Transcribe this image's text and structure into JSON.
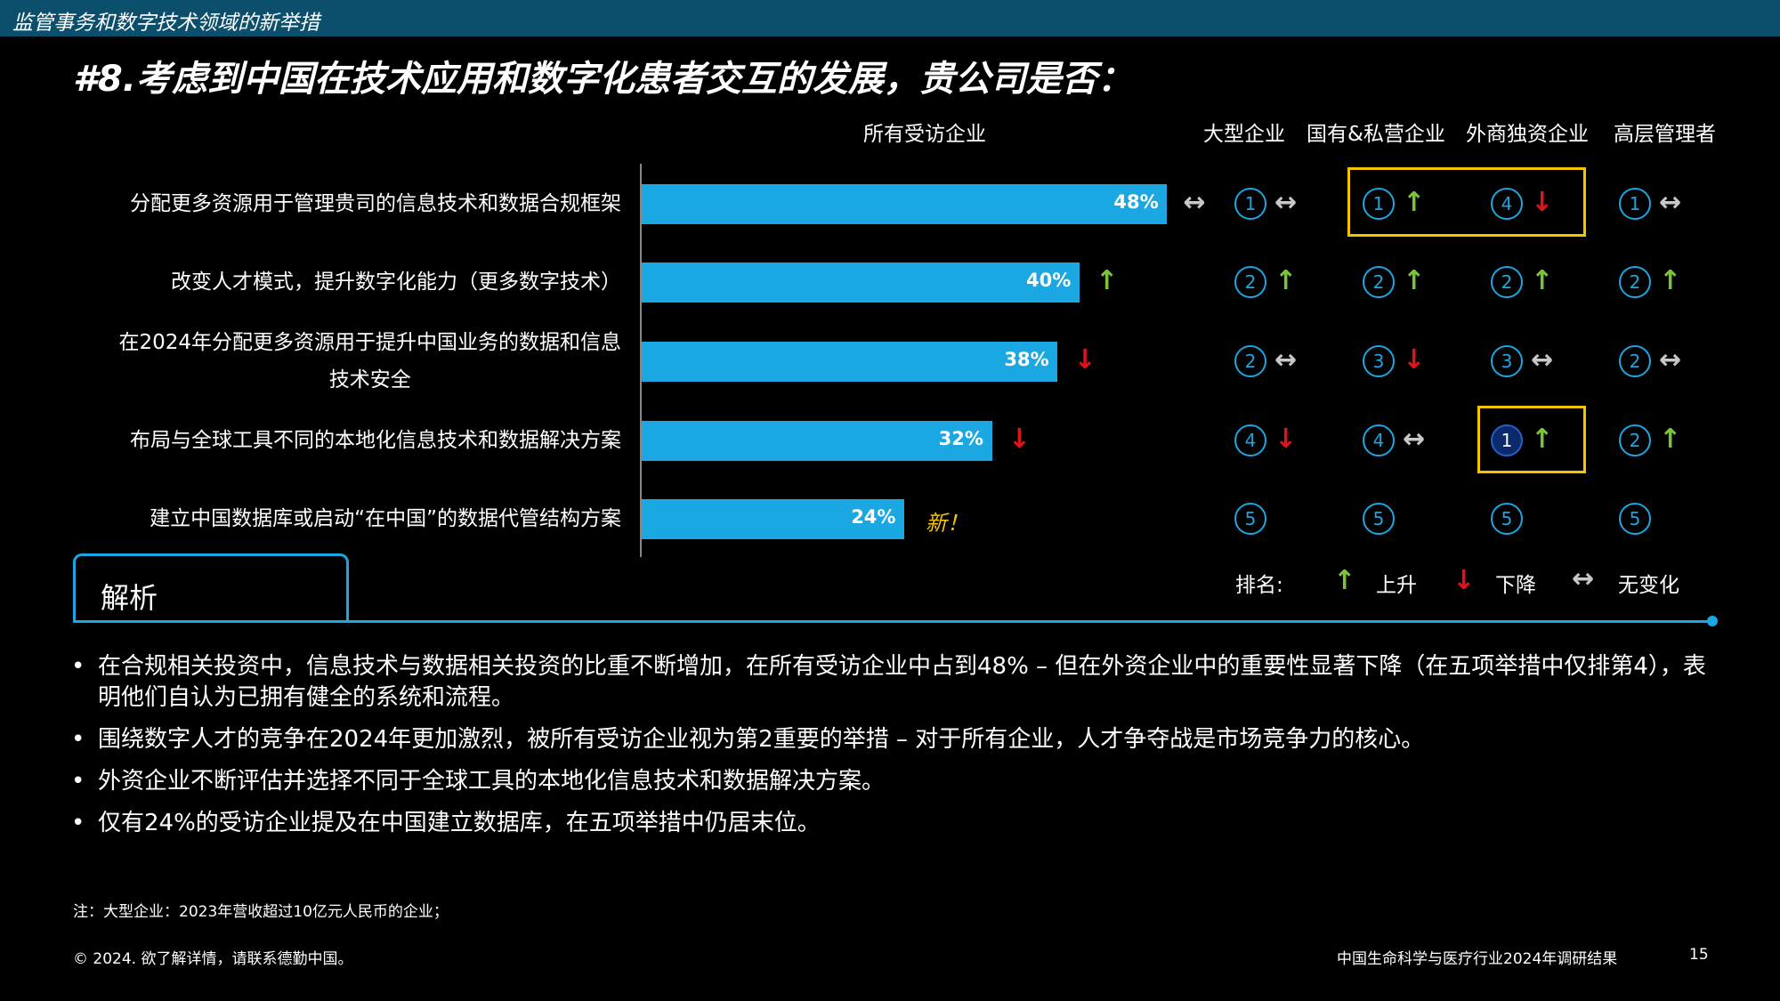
{
  "header": {
    "section": "监管事务和数字技术领域的新举措"
  },
  "title": "#8.考虑到中国在技术应用和数字化患者交互的发展，贵公司是否：",
  "column_headers": [
    "所有受访企业",
    "大型企业",
    "国有&私营企业",
    "外商独资企业",
    "高层管理者"
  ],
  "chart_data": {
    "type": "bar",
    "categories": [
      "分配更多资源用于管理贵司的信息技术和数据合规框架",
      "改变人才模式，提升数字化能力（更多数字技术）",
      "在2024年分配更多资源用于提升中国业务的数据和信息技术安全",
      "布局与全球工具不同的本地化信息技术和数据解决方案",
      "建立中国数据库或启动“在中国”的数据代管结构方案"
    ],
    "label_lines": [
      [
        "分配更多资源用于管理贵司的信息技术和数据合规框架"
      ],
      [
        "改变人才模式，提升数字化能力（更多数字技术）"
      ],
      [
        "在2024年分配更多资源用于提升中国业务的数据和信息",
        "技术安全"
      ],
      [
        "布局与全球工具不同的本地化信息技术和数据解决方案"
      ],
      [
        "建立中国数据库或启动“在中国”的数据代管结构方案"
      ]
    ],
    "values": [
      48,
      40,
      38,
      32,
      24
    ],
    "value_labels": [
      "48%",
      "40%",
      "38%",
      "32%",
      "24%"
    ],
    "trends": [
      "flat",
      "up",
      "down",
      "down",
      "new"
    ],
    "new_label": "新！",
    "segments": [
      "大型企业",
      "国有&私营企业",
      "外商独资企业",
      "高层管理者"
    ],
    "rankings": [
      [
        {
          "rank": "①",
          "trend": "flat"
        },
        {
          "rank": "①",
          "trend": "up"
        },
        {
          "rank": "④",
          "trend": "down"
        },
        {
          "rank": "①",
          "trend": "flat"
        }
      ],
      [
        {
          "rank": "②",
          "trend": "up"
        },
        {
          "rank": "②",
          "trend": "up"
        },
        {
          "rank": "②",
          "trend": "up"
        },
        {
          "rank": "②",
          "trend": "up"
        }
      ],
      [
        {
          "rank": "②",
          "trend": "flat"
        },
        {
          "rank": "③",
          "trend": "down"
        },
        {
          "rank": "③",
          "trend": "flat"
        },
        {
          "rank": "②",
          "trend": "flat"
        }
      ],
      [
        {
          "rank": "④",
          "trend": "down"
        },
        {
          "rank": "④",
          "trend": "flat"
        },
        {
          "rank": "①",
          "trend": "up",
          "filled": true
        },
        {
          "rank": "②",
          "trend": "up"
        }
      ],
      [
        {
          "rank": "⑤",
          "trend": "none"
        },
        {
          "rank": "⑤",
          "trend": "none"
        },
        {
          "rank": "⑤",
          "trend": "none"
        },
        {
          "rank": "⑤",
          "trend": "none"
        }
      ]
    ],
    "xlim": [
      0,
      100
    ],
    "colors": {
      "bar": "#1aa7e2",
      "up": "#7bc33a",
      "down": "#e0131b",
      "highlight": "#f5c400"
    }
  },
  "legend": {
    "title": "排名:",
    "up_label": "上升",
    "down_label": "下降",
    "flat_label": "无变化"
  },
  "analysis": {
    "tab_title": "解析",
    "bullets": [
      "在合规相关投资中，信息技术与数据相关投资的比重不断增加，在所有受访企业中占到48% – 但在外资企业中的重要性显著下降（在五项举措中仅排第4），表明他们自认为已拥有健全的系统和流程。",
      "围绕数字人才的竞争在2024年更加激烈，被所有受访企业视为第2重要的举措 – 对于所有企业，人才争夺战是市场竞争力的核心。",
      "外资企业不断评估并选择不同于全球工具的本地化信息技术和数据解决方案。",
      "仅有24%的受访企业提及在中国建立数据库，在五项举措中仍居末位。"
    ]
  },
  "note": "注：大型企业：2023年营收超过10亿元人民币的企业；",
  "footer": {
    "copyright": "© 2024. 欲了解详情，请联系德勤中国。",
    "report": "中国生命科学与医疗行业2024年调研结果",
    "page": "15"
  }
}
